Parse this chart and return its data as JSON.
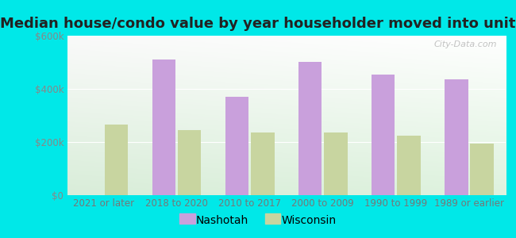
{
  "title": "Median house/condo value by year householder moved into unit",
  "categories": [
    "2021 or later",
    "2018 to 2020",
    "2010 to 2017",
    "2000 to 2009",
    "1990 to 1999",
    "1989 or earlier"
  ],
  "nashotah": [
    0,
    510000,
    370000,
    500000,
    455000,
    435000
  ],
  "wisconsin": [
    265000,
    245000,
    235000,
    235000,
    225000,
    195000
  ],
  "nashotah_color": "#c9a0dc",
  "wisconsin_color": "#c8d5a0",
  "background_outer": "#00e8e8",
  "ylim": [
    0,
    600000
  ],
  "yticks": [
    0,
    200000,
    400000,
    600000
  ],
  "ytick_labels": [
    "$0",
    "$200k",
    "$400k",
    "$600k"
  ],
  "watermark": "City-Data.com",
  "legend_nashotah": "Nashotah",
  "legend_wisconsin": "Wisconsin",
  "title_fontsize": 13,
  "tick_fontsize": 8.5,
  "legend_fontsize": 10,
  "bar_width": 0.32,
  "bar_gap": 0.03
}
